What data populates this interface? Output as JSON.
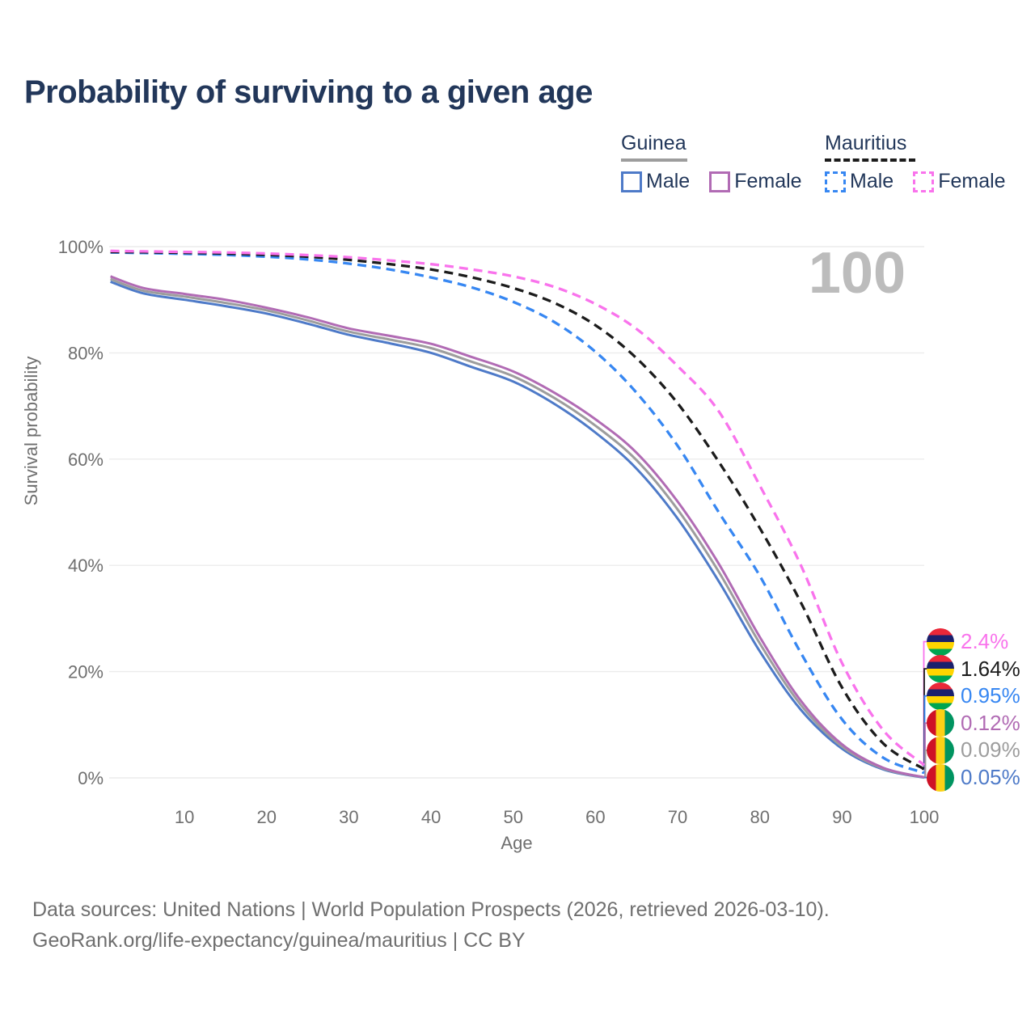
{
  "title": "Probability of surviving to a given age",
  "watermark": "100",
  "legend": {
    "guinea": {
      "label": "Guinea",
      "male": "Male",
      "female": "Female"
    },
    "mauritius": {
      "label": "Mauritius",
      "male": "Male",
      "female": "Female"
    }
  },
  "axes": {
    "y_label": "Survival probability",
    "x_label": "Age",
    "y_ticks": [
      {
        "label": "0%",
        "value": 0
      },
      {
        "label": "20%",
        "value": 20
      },
      {
        "label": "40%",
        "value": 40
      },
      {
        "label": "60%",
        "value": 60
      },
      {
        "label": "80%",
        "value": 80
      },
      {
        "label": "100%",
        "value": 100
      }
    ],
    "x_ticks": [
      {
        "label": "10",
        "value": 10
      },
      {
        "label": "20",
        "value": 20
      },
      {
        "label": "30",
        "value": 30
      },
      {
        "label": "40",
        "value": 40
      },
      {
        "label": "50",
        "value": 50
      },
      {
        "label": "60",
        "value": 60
      },
      {
        "label": "70",
        "value": 70
      },
      {
        "label": "80",
        "value": 80
      },
      {
        "label": "90",
        "value": 90
      },
      {
        "label": "100",
        "value": 100
      }
    ]
  },
  "end_labels": [
    {
      "series": "mauritius_female",
      "value_label": "2.4%",
      "value": 2.4,
      "color": "#f973ec",
      "flag": "mauritius",
      "flag_class": "flag flag-mauritius"
    },
    {
      "series": "mauritius_both",
      "value_label": "1.64%",
      "value": 1.64,
      "color": "#1c1c1c",
      "flag": "mauritius",
      "flag_class": "flag flag-mauritius"
    },
    {
      "series": "mauritius_male",
      "value_label": "0.95%",
      "value": 0.95,
      "color": "#3787f2",
      "flag": "mauritius",
      "flag_class": "flag flag-mauritius"
    },
    {
      "series": "guinea_female",
      "value_label": "0.12%",
      "value": 0.12,
      "color": "#b16bb4",
      "flag": "guinea",
      "flag_class": "flag flag-guinea"
    },
    {
      "series": "guinea_both",
      "value_label": "0.09%",
      "value": 0.09,
      "color": "#9d9d9d",
      "flag": "guinea",
      "flag_class": "flag flag-guinea"
    },
    {
      "series": "guinea_male",
      "value_label": "0.05%",
      "value": 0.05,
      "color": "#4e7ac8",
      "flag": "guinea",
      "flag_class": "flag flag-guinea"
    }
  ],
  "source": {
    "line1": "Data sources: United Nations | World Population Prospects (2026, retrieved 2026-03-10).",
    "line2": "GeoRank.org/life-expectancy/guinea/mauritius | CC BY"
  },
  "chart_data": {
    "type": "line",
    "title": "Probability of surviving to a given age",
    "xlabel": "Age",
    "ylabel": "Survival probability",
    "xlim": [
      1,
      100
    ],
    "ylim": [
      0,
      100
    ],
    "grid": "horizontal",
    "legend_position": "top-right",
    "x": [
      1,
      5,
      10,
      15,
      20,
      25,
      30,
      35,
      40,
      45,
      50,
      55,
      60,
      65,
      70,
      75,
      80,
      85,
      90,
      95,
      100
    ],
    "series": [
      {
        "name": "Guinea Male",
        "country": "Guinea",
        "sex": "male",
        "color": "#4e7ac8",
        "dash": false,
        "values": [
          93.4,
          91.2,
          90.0,
          88.8,
          87.4,
          85.5,
          83.4,
          81.8,
          80.0,
          77.3,
          74.6,
          70.4,
          65.0,
          58.2,
          48.8,
          37.0,
          23.8,
          12.8,
          5.5,
          1.6,
          0.05
        ]
      },
      {
        "name": "Guinea Both sexes",
        "country": "Guinea",
        "sex": "both",
        "color": "#9d9d9d",
        "dash": false,
        "values": [
          93.9,
          91.7,
          90.6,
          89.4,
          88.0,
          86.1,
          84.0,
          82.5,
          80.9,
          78.3,
          75.6,
          71.5,
          66.3,
          59.8,
          50.5,
          38.8,
          25.3,
          13.7,
          5.9,
          1.75,
          0.09
        ]
      },
      {
        "name": "Guinea Female",
        "country": "Guinea",
        "sex": "female",
        "color": "#b16bb4",
        "dash": false,
        "values": [
          94.4,
          92.2,
          91.1,
          90.0,
          88.5,
          86.7,
          84.6,
          83.2,
          81.7,
          79.2,
          76.5,
          72.5,
          67.5,
          61.2,
          52.0,
          40.3,
          26.5,
          14.5,
          6.3,
          1.9,
          0.12
        ]
      },
      {
        "name": "Mauritius Male",
        "country": "Mauritius",
        "sex": "male",
        "color": "#3787f2",
        "dash": true,
        "values": [
          98.9,
          98.8,
          98.65,
          98.45,
          98.1,
          97.6,
          96.8,
          95.7,
          94.2,
          92.3,
          89.6,
          85.8,
          80.2,
          72.5,
          62.5,
          50.0,
          38.0,
          23.5,
          11.0,
          3.8,
          0.95
        ]
      },
      {
        "name": "Mauritius Both sexes",
        "country": "Mauritius",
        "sex": "both",
        "color": "#1c1c1c",
        "dash": true,
        "values": [
          99.0,
          98.95,
          98.85,
          98.7,
          98.45,
          98.1,
          97.5,
          96.7,
          95.7,
          94.2,
          92.2,
          89.4,
          85.2,
          79.0,
          70.5,
          59.5,
          47.0,
          33.0,
          17.0,
          6.5,
          1.64
        ]
      },
      {
        "name": "Mauritius Female",
        "country": "Mauritius",
        "sex": "female",
        "color": "#f973ec",
        "dash": true,
        "values": [
          99.2,
          99.1,
          99.0,
          98.9,
          98.7,
          98.4,
          98.0,
          97.4,
          96.7,
          95.7,
          94.4,
          92.4,
          89.2,
          84.5,
          77.5,
          69.0,
          55.0,
          40.0,
          21.6,
          9.0,
          2.4
        ]
      }
    ]
  }
}
